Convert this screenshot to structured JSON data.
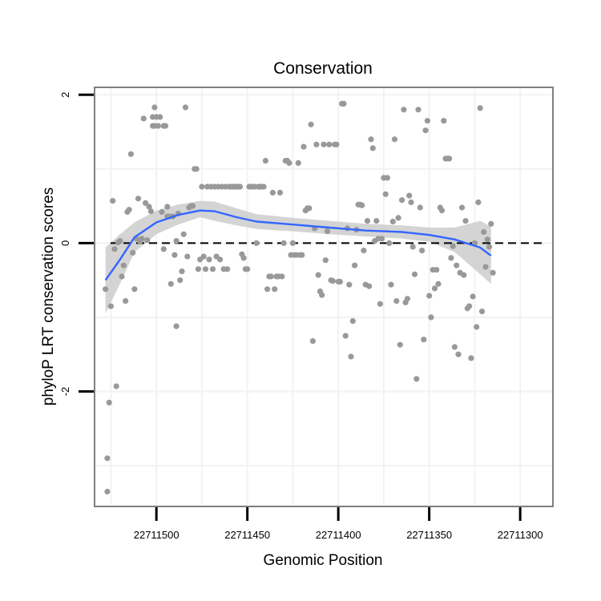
{
  "chart_data": {
    "type": "scatter",
    "title": "Conservation",
    "xlabel": "Genomic Position",
    "ylabel": "phyloP LRT conservation scores",
    "x_reversed": true,
    "xlim": [
      22711534,
      22711282
    ],
    "ylim": [
      -3.55,
      2.1
    ],
    "x_ticks": [
      22711500,
      22711450,
      22711400,
      22711350,
      22711300
    ],
    "x_tick_labels": [
      "22711500",
      "22711450",
      "22711400",
      "22711350",
      "22711300"
    ],
    "y_ticks": [
      -2,
      0,
      2
    ],
    "y_tick_labels": [
      "-2",
      "0",
      "2"
    ],
    "reference_line": 0,
    "grid": true,
    "colors": {
      "points": "#999999",
      "smooth_line": "#3366ff",
      "confidence_band": "#cccccc",
      "panel_border": "#7f7f7f",
      "gridline": "#f2f2f2"
    },
    "points": [
      [
        22711528,
        -0.62
      ],
      [
        22711527,
        -2.9
      ],
      [
        22711527,
        -3.35
      ],
      [
        22711526,
        -2.15
      ],
      [
        22711525,
        -0.85
      ],
      [
        22711524,
        0.57
      ],
      [
        22711523,
        -0.08
      ],
      [
        22711522,
        -1.93
      ],
      [
        22711521,
        0.01
      ],
      [
        22711520,
        0.03
      ],
      [
        22711519,
        -0.45
      ],
      [
        22711518,
        -0.3
      ],
      [
        22711517,
        -0.78
      ],
      [
        22711516,
        0.42
      ],
      [
        22711515,
        0.45
      ],
      [
        22711514,
        1.2
      ],
      [
        22711513,
        -0.13
      ],
      [
        22711512,
        -0.62
      ],
      [
        22711511,
        0.06
      ],
      [
        22711510,
        0.6
      ],
      [
        22711509,
        0.02
      ],
      [
        22711508,
        0.06
      ],
      [
        22711507,
        1.68
      ],
      [
        22711506,
        0.54
      ],
      [
        22711505,
        0.04
      ],
      [
        22711504,
        0.49
      ],
      [
        22711503,
        0.43
      ],
      [
        22711502,
        1.7
      ],
      [
        22711502,
        1.58
      ],
      [
        22711501,
        1.83
      ],
      [
        22711501,
        1.58
      ],
      [
        22711500,
        1.7
      ],
      [
        22711499,
        1.58
      ],
      [
        22711498,
        1.7
      ],
      [
        22711497,
        0.42
      ],
      [
        22711496,
        1.58
      ],
      [
        22711496,
        -0.08
      ],
      [
        22711495,
        1.58
      ],
      [
        22711494,
        0.49
      ],
      [
        22711494,
        0.36
      ],
      [
        22711493,
        0.36
      ],
      [
        22711492,
        -0.55
      ],
      [
        22711491,
        0.36
      ],
      [
        22711490,
        -0.16
      ],
      [
        22711489,
        -1.12
      ],
      [
        22711489,
        0.03
      ],
      [
        22711488,
        0.4
      ],
      [
        22711487,
        -0.5
      ],
      [
        22711486,
        -0.38
      ],
      [
        22711485,
        0.12
      ],
      [
        22711484,
        1.83
      ],
      [
        22711483,
        -0.18
      ],
      [
        22711482,
        0.48
      ],
      [
        22711481,
        0.5
      ],
      [
        22711480,
        0.5
      ],
      [
        22711479,
        1.0
      ],
      [
        22711478,
        1.0
      ],
      [
        22711477,
        -0.35
      ],
      [
        22711476,
        -0.22
      ],
      [
        22711475,
        0.76
      ],
      [
        22711474,
        -0.18
      ],
      [
        22711473,
        -0.35
      ],
      [
        22711472,
        0.76
      ],
      [
        22711471,
        -0.22
      ],
      [
        22711470,
        0.76
      ],
      [
        22711469,
        -0.35
      ],
      [
        22711468,
        0.76
      ],
      [
        22711467,
        -0.18
      ],
      [
        22711466,
        0.76
      ],
      [
        22711465,
        -0.22
      ],
      [
        22711464,
        0.76
      ],
      [
        22711463,
        -0.35
      ],
      [
        22711462,
        0.76
      ],
      [
        22711461,
        -0.35
      ],
      [
        22711460,
        0.76
      ],
      [
        22711459,
        0.76
      ],
      [
        22711458,
        0.76
      ],
      [
        22711457,
        0.76
      ],
      [
        22711456,
        0.76
      ],
      [
        22711455,
        0.76
      ],
      [
        22711454,
        0.76
      ],
      [
        22711453,
        -0.15
      ],
      [
        22711452,
        -0.2
      ],
      [
        22711451,
        -0.35
      ],
      [
        22711450,
        -0.35
      ],
      [
        22711449,
        0.76
      ],
      [
        22711448,
        0.76
      ],
      [
        22711447,
        0.76
      ],
      [
        22711446,
        0.76
      ],
      [
        22711445,
        0.0
      ],
      [
        22711444,
        0.76
      ],
      [
        22711443,
        0.76
      ],
      [
        22711442,
        0.76
      ],
      [
        22711441,
        0.76
      ],
      [
        22711440,
        1.11
      ],
      [
        22711439,
        -0.62
      ],
      [
        22711438,
        -0.45
      ],
      [
        22711437,
        -0.45
      ],
      [
        22711436,
        0.68
      ],
      [
        22711435,
        -0.62
      ],
      [
        22711434,
        -0.45
      ],
      [
        22711433,
        -0.45
      ],
      [
        22711432,
        0.68
      ],
      [
        22711431,
        -0.45
      ],
      [
        22711430,
        0.0
      ],
      [
        22711429,
        1.11
      ],
      [
        22711428,
        1.11
      ],
      [
        22711427,
        1.08
      ],
      [
        22711426,
        -0.16
      ],
      [
        22711425,
        0.0
      ],
      [
        22711424,
        -0.16
      ],
      [
        22711423,
        -0.16
      ],
      [
        22711422,
        1.08
      ],
      [
        22711421,
        -0.16
      ],
      [
        22711420,
        -0.16
      ],
      [
        22711419,
        1.3
      ],
      [
        22711418,
        0.44
      ],
      [
        22711417,
        0.47
      ],
      [
        22711416,
        0.47
      ],
      [
        22711415,
        1.6
      ],
      [
        22711414,
        -1.32
      ],
      [
        22711413,
        0.2
      ],
      [
        22711412,
        1.33
      ],
      [
        22711411,
        -0.43
      ],
      [
        22711410,
        -0.65
      ],
      [
        22711409,
        -0.7
      ],
      [
        22711408,
        1.33
      ],
      [
        22711407,
        -0.23
      ],
      [
        22711406,
        0.16
      ],
      [
        22711405,
        1.33
      ],
      [
        22711404,
        -0.5
      ],
      [
        22711403,
        -0.51
      ],
      [
        22711402,
        1.33
      ],
      [
        22711401,
        1.33
      ],
      [
        22711400,
        -0.52
      ],
      [
        22711399,
        -0.52
      ],
      [
        22711398,
        1.88
      ],
      [
        22711397,
        1.88
      ],
      [
        22711396,
        -1.25
      ],
      [
        22711395,
        0.2
      ],
      [
        22711394,
        -0.56
      ],
      [
        22711393,
        -1.53
      ],
      [
        22711392,
        -1.05
      ],
      [
        22711391,
        -0.3
      ],
      [
        22711390,
        0.18
      ],
      [
        22711389,
        0.52
      ],
      [
        22711388,
        0.52
      ],
      [
        22711387,
        0.51
      ],
      [
        22711386,
        -0.1
      ],
      [
        22711385,
        -0.56
      ],
      [
        22711384,
        0.3
      ],
      [
        22711383,
        -0.58
      ],
      [
        22711382,
        1.4
      ],
      [
        22711381,
        1.28
      ],
      [
        22711380,
        0.03
      ],
      [
        22711379,
        0.3
      ],
      [
        22711378,
        0.06
      ],
      [
        22711377,
        -0.82
      ],
      [
        22711376,
        0.06
      ],
      [
        22711375,
        0.88
      ],
      [
        22711374,
        0.66
      ],
      [
        22711373,
        0.88
      ],
      [
        22711372,
        0.0
      ],
      [
        22711371,
        -0.56
      ],
      [
        22711370,
        0.29
      ],
      [
        22711369,
        1.4
      ],
      [
        22711368,
        -0.78
      ],
      [
        22711367,
        0.34
      ],
      [
        22711366,
        -1.37
      ],
      [
        22711365,
        0.58
      ],
      [
        22711364,
        1.8
      ],
      [
        22711363,
        -0.8
      ],
      [
        22711362,
        -0.75
      ],
      [
        22711361,
        0.64
      ],
      [
        22711360,
        0.55
      ],
      [
        22711359,
        -0.05
      ],
      [
        22711358,
        -0.42
      ],
      [
        22711357,
        -1.83
      ],
      [
        22711356,
        1.8
      ],
      [
        22711355,
        0.48
      ],
      [
        22711354,
        -0.1
      ],
      [
        22711353,
        -1.3
      ],
      [
        22711352,
        1.52
      ],
      [
        22711351,
        1.65
      ],
      [
        22711350,
        -0.71
      ],
      [
        22711349,
        -1.0
      ],
      [
        22711348,
        -0.36
      ],
      [
        22711347,
        -0.61
      ],
      [
        22711346,
        -0.36
      ],
      [
        22711345,
        -0.55
      ],
      [
        22711344,
        0.48
      ],
      [
        22711343,
        0.44
      ],
      [
        22711342,
        1.65
      ],
      [
        22711341,
        1.14
      ],
      [
        22711340,
        1.14
      ],
      [
        22711339,
        1.14
      ],
      [
        22711338,
        -0.2
      ],
      [
        22711337,
        -0.04
      ],
      [
        22711336,
        -1.4
      ],
      [
        22711335,
        -0.3
      ],
      [
        22711334,
        -1.5
      ],
      [
        22711333,
        -0.4
      ],
      [
        22711332,
        0.48
      ],
      [
        22711331,
        -0.43
      ],
      [
        22711330,
        0.3
      ],
      [
        22711329,
        -0.88
      ],
      [
        22711328,
        -0.85
      ],
      [
        22711327,
        -1.55
      ],
      [
        22711326,
        -0.72
      ],
      [
        22711325,
        0.0
      ],
      [
        22711324,
        -1.13
      ],
      [
        22711323,
        0.55
      ],
      [
        22711322,
        1.82
      ],
      [
        22711321,
        -0.92
      ],
      [
        22711320,
        0.15
      ],
      [
        22711319,
        -0.32
      ],
      [
        22711318,
        0.05
      ],
      [
        22711317,
        -0.05
      ],
      [
        22711316,
        0.26
      ],
      [
        22711315,
        -0.4
      ]
    ],
    "smooth": [
      [
        22711528,
        -0.5
      ],
      [
        22711520,
        -0.22
      ],
      [
        22711512,
        0.08
      ],
      [
        22711500,
        0.28
      ],
      [
        22711488,
        0.38
      ],
      [
        22711476,
        0.44
      ],
      [
        22711468,
        0.43
      ],
      [
        22711456,
        0.35
      ],
      [
        22711445,
        0.29
      ],
      [
        22711425,
        0.25
      ],
      [
        22711405,
        0.21
      ],
      [
        22711385,
        0.17
      ],
      [
        22711365,
        0.15
      ],
      [
        22711350,
        0.11
      ],
      [
        22711336,
        0.05
      ],
      [
        22711322,
        -0.06
      ],
      [
        22711316,
        -0.17
      ]
    ],
    "smooth_ci": [
      [
        22711528,
        -0.95,
        -0.06
      ],
      [
        22711520,
        -0.55,
        0.12
      ],
      [
        22711512,
        -0.12,
        0.28
      ],
      [
        22711500,
        0.12,
        0.44
      ],
      [
        22711488,
        0.25,
        0.52
      ],
      [
        22711476,
        0.35,
        0.57
      ],
      [
        22711468,
        0.3,
        0.56
      ],
      [
        22711456,
        0.24,
        0.47
      ],
      [
        22711445,
        0.19,
        0.39
      ],
      [
        22711425,
        0.16,
        0.34
      ],
      [
        22711405,
        0.12,
        0.3
      ],
      [
        22711385,
        0.09,
        0.26
      ],
      [
        22711365,
        0.06,
        0.24
      ],
      [
        22711350,
        0.02,
        0.21
      ],
      [
        22711336,
        -0.12,
        0.21
      ],
      [
        22711322,
        -0.42,
        0.3
      ],
      [
        22711316,
        -0.55,
        0.22
      ]
    ]
  }
}
